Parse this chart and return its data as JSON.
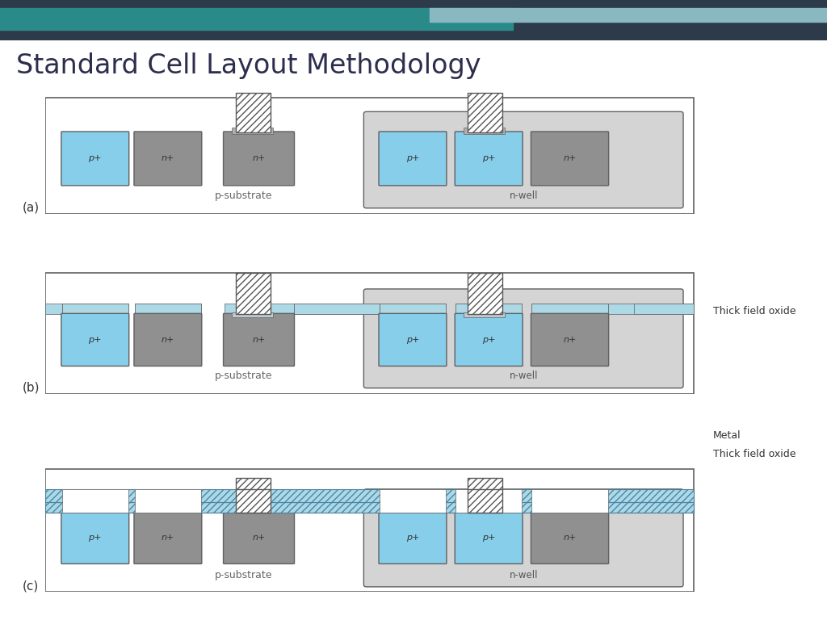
{
  "title": "Standard Cell Layout Methodology",
  "title_color": "#2d2d4e",
  "title_fontsize": 24,
  "bg_color": "#ffffff",
  "header_bar1": "#2d3a4a",
  "header_bar2": "#2a8a8a",
  "header_bar3": "#8ab8c0",
  "colors": {
    "p_plus": "#87ceeb",
    "n_plus": "#909090",
    "n_well": "#d4d4d4",
    "white": "#ffffff",
    "field_oxide": "#add8e6",
    "outline": "#606060",
    "hatch_fg": "#555555",
    "substrate_white": "#ffffff"
  },
  "panel_labels": [
    "(a)",
    "(b)",
    "(c)"
  ],
  "label_b_oxide": "Thick field oxide",
  "label_c_metal": "Metal",
  "label_c_oxide": "Thick field oxide",
  "p_substrate": "p-substrate",
  "n_well": "n-well"
}
